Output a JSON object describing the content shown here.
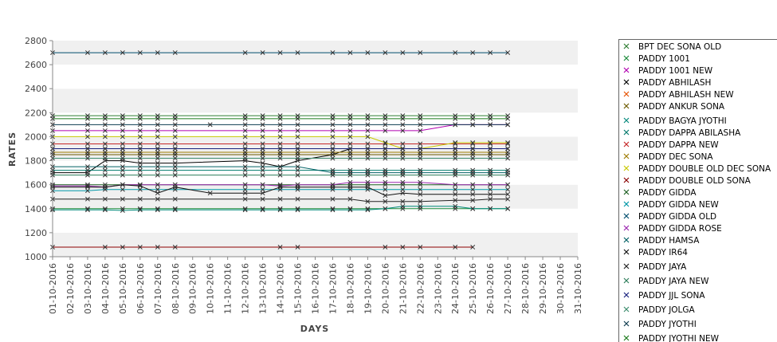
{
  "chart_data": {
    "type": "line",
    "xlabel": "DAYS",
    "ylabel": "RATES",
    "ylim": [
      1000,
      2800
    ],
    "yticks": [
      1000,
      1200,
      1400,
      1600,
      1800,
      2000,
      2200,
      2400,
      2600,
      2800
    ],
    "grid": "alternating horizontal bands",
    "legend_position": "right",
    "categories": [
      "01-10-2016",
      "02-10-2016",
      "03-10-2016",
      "04-10-2016",
      "05-10-2016",
      "06-10-2016",
      "07-10-2016",
      "08-10-2016",
      "09-10-2016",
      "10-10-2016",
      "11-10-2016",
      "12-10-2016",
      "13-10-2016",
      "14-10-2016",
      "15-10-2016",
      "16-10-2016",
      "17-10-2016",
      "18-10-2016",
      "19-10-2016",
      "20-10-2016",
      "21-10-2016",
      "22-10-2016",
      "23-10-2016",
      "24-10-2016",
      "25-10-2016",
      "26-10-2016",
      "27-10-2016",
      "28-10-2016",
      "29-10-2016",
      "30-10-2016",
      "31-10-2016"
    ],
    "series": [
      {
        "name": "BPT DEC SONA OLD",
        "color": "#2e7d32",
        "values": [
          2175,
          null,
          2175,
          2175,
          2175,
          2175,
          2175,
          2175,
          null,
          null,
          null,
          2175,
          2175,
          2175,
          2175,
          null,
          2175,
          2175,
          2175,
          2175,
          2175,
          2175,
          null,
          2175,
          2175,
          2175,
          2175,
          null,
          null,
          null,
          null
        ]
      },
      {
        "name": "PADDY 1001",
        "color": "#1b8a3a",
        "values": [
          1400,
          null,
          1400,
          1400,
          1400,
          1400,
          1400,
          1400,
          null,
          null,
          null,
          1400,
          1400,
          1400,
          1400,
          null,
          1400,
          1400,
          1400,
          1400,
          1400,
          1400,
          null,
          1400,
          1400,
          1400,
          1400,
          null,
          null,
          null,
          null
        ]
      },
      {
        "name": "PADDY 1001 NEW",
        "color": "#b000b0",
        "values": [
          2050,
          null,
          2050,
          2050,
          2050,
          2050,
          2050,
          2050,
          null,
          null,
          null,
          2050,
          2050,
          2050,
          2050,
          null,
          2050,
          2050,
          2050,
          2050,
          2050,
          2050,
          null,
          2100,
          2100,
          2100,
          2100,
          null,
          null,
          null,
          null
        ]
      },
      {
        "name": "PADDY ABHILASH",
        "color": "#000000",
        "values": [
          1700,
          null,
          1700,
          1800,
          1800,
          1780,
          1780,
          1780,
          null,
          null,
          null,
          1800,
          1780,
          1750,
          1800,
          null,
          1850,
          1900,
          1900,
          1900,
          1900,
          1900,
          null,
          1900,
          1900,
          1900,
          1900,
          null,
          null,
          null,
          null
        ]
      },
      {
        "name": "PADDY ABHILASH NEW",
        "color": "#e65100",
        "values": [
          1900,
          null,
          1900,
          1900,
          1900,
          1900,
          1900,
          1900,
          null,
          null,
          null,
          1900,
          1900,
          1900,
          1900,
          null,
          1900,
          1900,
          1900,
          1900,
          1900,
          1900,
          null,
          1900,
          1900,
          1900,
          1900,
          null,
          null,
          null,
          null
        ]
      },
      {
        "name": "PADDY ANKUR SONA",
        "color": "#6d5a00",
        "values": [
          1850,
          null,
          1850,
          1850,
          1850,
          1850,
          1850,
          1850,
          null,
          null,
          null,
          1850,
          1850,
          1850,
          1850,
          null,
          1850,
          1850,
          1850,
          1850,
          1850,
          1850,
          null,
          1850,
          1850,
          1850,
          1850,
          null,
          null,
          null,
          null
        ]
      },
      {
        "name": "PADDY BAGYA JYOTHI",
        "color": "#00897b",
        "values": [
          1390,
          null,
          1390,
          1390,
          1385,
          1390,
          1390,
          1390,
          null,
          null,
          null,
          1390,
          1390,
          1390,
          1390,
          null,
          1390,
          1390,
          1390,
          1400,
          1420,
          1420,
          null,
          1420,
          1400,
          1400,
          1400,
          null,
          null,
          null,
          null
        ]
      },
      {
        "name": "PADDY DAPPA ABILASHA",
        "color": "#00796b",
        "values": [
          1720,
          null,
          1720,
          1720,
          1720,
          1720,
          1720,
          1720,
          null,
          null,
          null,
          1720,
          1720,
          1720,
          1720,
          null,
          1720,
          1720,
          1720,
          1720,
          1720,
          1720,
          null,
          1720,
          1720,
          1720,
          1720,
          null,
          null,
          null,
          null
        ]
      },
      {
        "name": "PADDY DAPPA NEW",
        "color": "#c62828",
        "values": [
          1940,
          null,
          1940,
          1940,
          1940,
          1940,
          1940,
          1940,
          null,
          null,
          null,
          1940,
          1940,
          1940,
          1940,
          null,
          1940,
          1940,
          1940,
          1940,
          1940,
          1940,
          null,
          1940,
          1940,
          1940,
          1940,
          null,
          null,
          null,
          null
        ]
      },
      {
        "name": "PADDY DEC SONA",
        "color": "#9e7b00",
        "values": [
          1870,
          null,
          1870,
          1870,
          1870,
          1870,
          1870,
          1870,
          null,
          null,
          null,
          1870,
          1870,
          1870,
          1870,
          null,
          1870,
          1870,
          1870,
          1870,
          1870,
          1870,
          null,
          1870,
          1870,
          1870,
          1870,
          null,
          null,
          null,
          null
        ]
      },
      {
        "name": "PADDY DOUBLE OLD DEC SONA",
        "color": "#c8c800",
        "values": [
          2000,
          null,
          2000,
          2000,
          2000,
          2000,
          2000,
          2000,
          null,
          null,
          null,
          2000,
          2000,
          2000,
          2000,
          null,
          2000,
          2000,
          2000,
          1950,
          1900,
          1900,
          null,
          1950,
          1950,
          1950,
          1950,
          null,
          null,
          null,
          null
        ]
      },
      {
        "name": "PADDY DOUBLE OLD SONA",
        "color": "#8b0000",
        "values": [
          1080,
          null,
          null,
          1080,
          1080,
          1080,
          1080,
          1080,
          null,
          null,
          null,
          null,
          null,
          1080,
          1080,
          null,
          null,
          null,
          null,
          1080,
          1080,
          1080,
          null,
          1080,
          1080,
          null,
          null,
          null,
          null,
          null,
          null
        ]
      },
      {
        "name": "PADDY GIDDA",
        "color": "#1b5e20",
        "values": [
          1600,
          null,
          1600,
          1600,
          1600,
          1600,
          1600,
          1600,
          null,
          null,
          null,
          1600,
          1600,
          1600,
          1600,
          null,
          1600,
          1600,
          1600,
          1600,
          1600,
          1600,
          null,
          1600,
          1600,
          1600,
          1600,
          null,
          null,
          null,
          null
        ]
      },
      {
        "name": "PADDY GIDDA NEW",
        "color": "#0097a7",
        "values": [
          1550,
          null,
          1550,
          1560,
          1560,
          1560,
          1560,
          1560,
          null,
          null,
          null,
          1560,
          1560,
          1560,
          1560,
          null,
          1560,
          1560,
          1560,
          1560,
          1560,
          1560,
          null,
          1560,
          1560,
          1560,
          1560,
          null,
          null,
          null,
          null
        ]
      },
      {
        "name": "PADDY GIDDA OLD",
        "color": "#004d6e",
        "values": [
          2700,
          null,
          2700,
          2700,
          2700,
          2700,
          2700,
          2700,
          null,
          null,
          null,
          2700,
          2700,
          2700,
          2700,
          null,
          2700,
          2700,
          2700,
          2700,
          2700,
          2700,
          null,
          2700,
          2700,
          2700,
          2700,
          null,
          null,
          null,
          null
        ]
      },
      {
        "name": "PADDY GIDDA ROSE",
        "color": "#9c27b0",
        "values": [
          1590,
          null,
          1590,
          1580,
          1600,
          1600,
          1600,
          1600,
          null,
          null,
          null,
          1600,
          1600,
          1590,
          1600,
          null,
          1600,
          1620,
          1620,
          1620,
          1620,
          1620,
          null,
          1600,
          1600,
          1600,
          1600,
          null,
          null,
          null,
          null
        ]
      },
      {
        "name": "PADDY HAMSA",
        "color": "#006064",
        "values": [
          1750,
          null,
          1750,
          1750,
          1750,
          1750,
          1750,
          1750,
          null,
          null,
          null,
          1750,
          1750,
          1750,
          1750,
          null,
          1700,
          1700,
          1700,
          1700,
          1700,
          1700,
          null,
          1700,
          1700,
          1700,
          1700,
          null,
          null,
          null,
          null
        ]
      },
      {
        "name": "PADDY IR64",
        "color": "#111111",
        "values": [
          1580,
          null,
          1580,
          1580,
          1600,
          1590,
          1530,
          1580,
          null,
          1530,
          null,
          1530,
          1530,
          1580,
          1580,
          null,
          1580,
          1580,
          1580,
          1510,
          1530,
          1520,
          null,
          1520,
          1520,
          1520,
          1520,
          null,
          null,
          null,
          null
        ]
      },
      {
        "name": "PADDY JAYA",
        "color": "#222222",
        "values": [
          1480,
          null,
          1480,
          1480,
          1480,
          1480,
          1480,
          1480,
          null,
          null,
          null,
          1480,
          1480,
          1480,
          1480,
          null,
          1480,
          1480,
          1460,
          1460,
          1460,
          1460,
          null,
          1470,
          1470,
          1480,
          1480,
          null,
          null,
          null,
          null
        ]
      },
      {
        "name": "PADDY JAYA NEW",
        "color": "#2e7d5a",
        "values": [
          1680,
          null,
          1680,
          1680,
          1680,
          1680,
          1680,
          1680,
          null,
          null,
          null,
          1680,
          1680,
          1680,
          1680,
          null,
          1680,
          1680,
          1680,
          1680,
          1680,
          1680,
          null,
          1680,
          1680,
          1680,
          1680,
          null,
          null,
          null,
          null
        ]
      },
      {
        "name": "PADDY JJL SONA",
        "color": "#1a237e",
        "values": [
          1900,
          null,
          1900,
          1900,
          1900,
          1900,
          1900,
          1900,
          null,
          null,
          null,
          1900,
          1900,
          1900,
          1900,
          null,
          1900,
          1900,
          1900,
          1900,
          1900,
          1900,
          null,
          1900,
          1900,
          1900,
          1900,
          null,
          null,
          null,
          null
        ]
      },
      {
        "name": "PADDY JOLGA",
        "color": "#3c8c6e",
        "values": [
          1820,
          null,
          1820,
          1820,
          1820,
          1820,
          1820,
          1820,
          null,
          null,
          null,
          1820,
          1820,
          1820,
          1820,
          null,
          1820,
          1820,
          1820,
          1820,
          1820,
          1820,
          null,
          1820,
          1820,
          1820,
          1820,
          null,
          null,
          null,
          null
        ]
      },
      {
        "name": "PADDY JYOTHI",
        "color": "#0d3b4f",
        "values": [
          2100,
          null,
          2100,
          2100,
          2100,
          2100,
          2100,
          2100,
          null,
          2100,
          null,
          2100,
          2100,
          2100,
          2100,
          null,
          2100,
          2100,
          2100,
          2100,
          2100,
          2100,
          null,
          2100,
          2100,
          2100,
          2100,
          null,
          null,
          null,
          null
        ]
      },
      {
        "name": "PADDY JYOTHI NEW",
        "color": "#1b7a1b",
        "values": [
          2150,
          null,
          2150,
          2150,
          2150,
          2150,
          2150,
          2150,
          null,
          null,
          null,
          2150,
          2150,
          2150,
          2150,
          null,
          2150,
          2150,
          2150,
          2150,
          2150,
          2150,
          null,
          2150,
          2150,
          2150,
          2150,
          null,
          null,
          null,
          null
        ]
      }
    ]
  }
}
